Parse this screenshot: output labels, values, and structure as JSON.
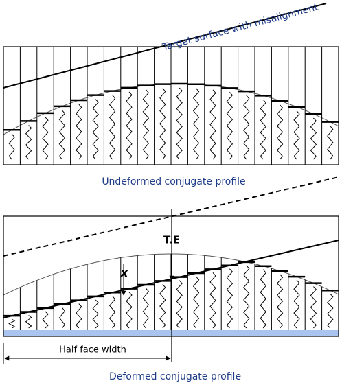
{
  "top_panel": {
    "line_label": "Target surface with misalignment",
    "caption": "Undeformed conjugate profile"
  },
  "bottom_panel": {
    "te_label": "T.E",
    "x_label": "x",
    "width_label": "Half face width",
    "caption": "Deformed conjugate profile"
  }
}
